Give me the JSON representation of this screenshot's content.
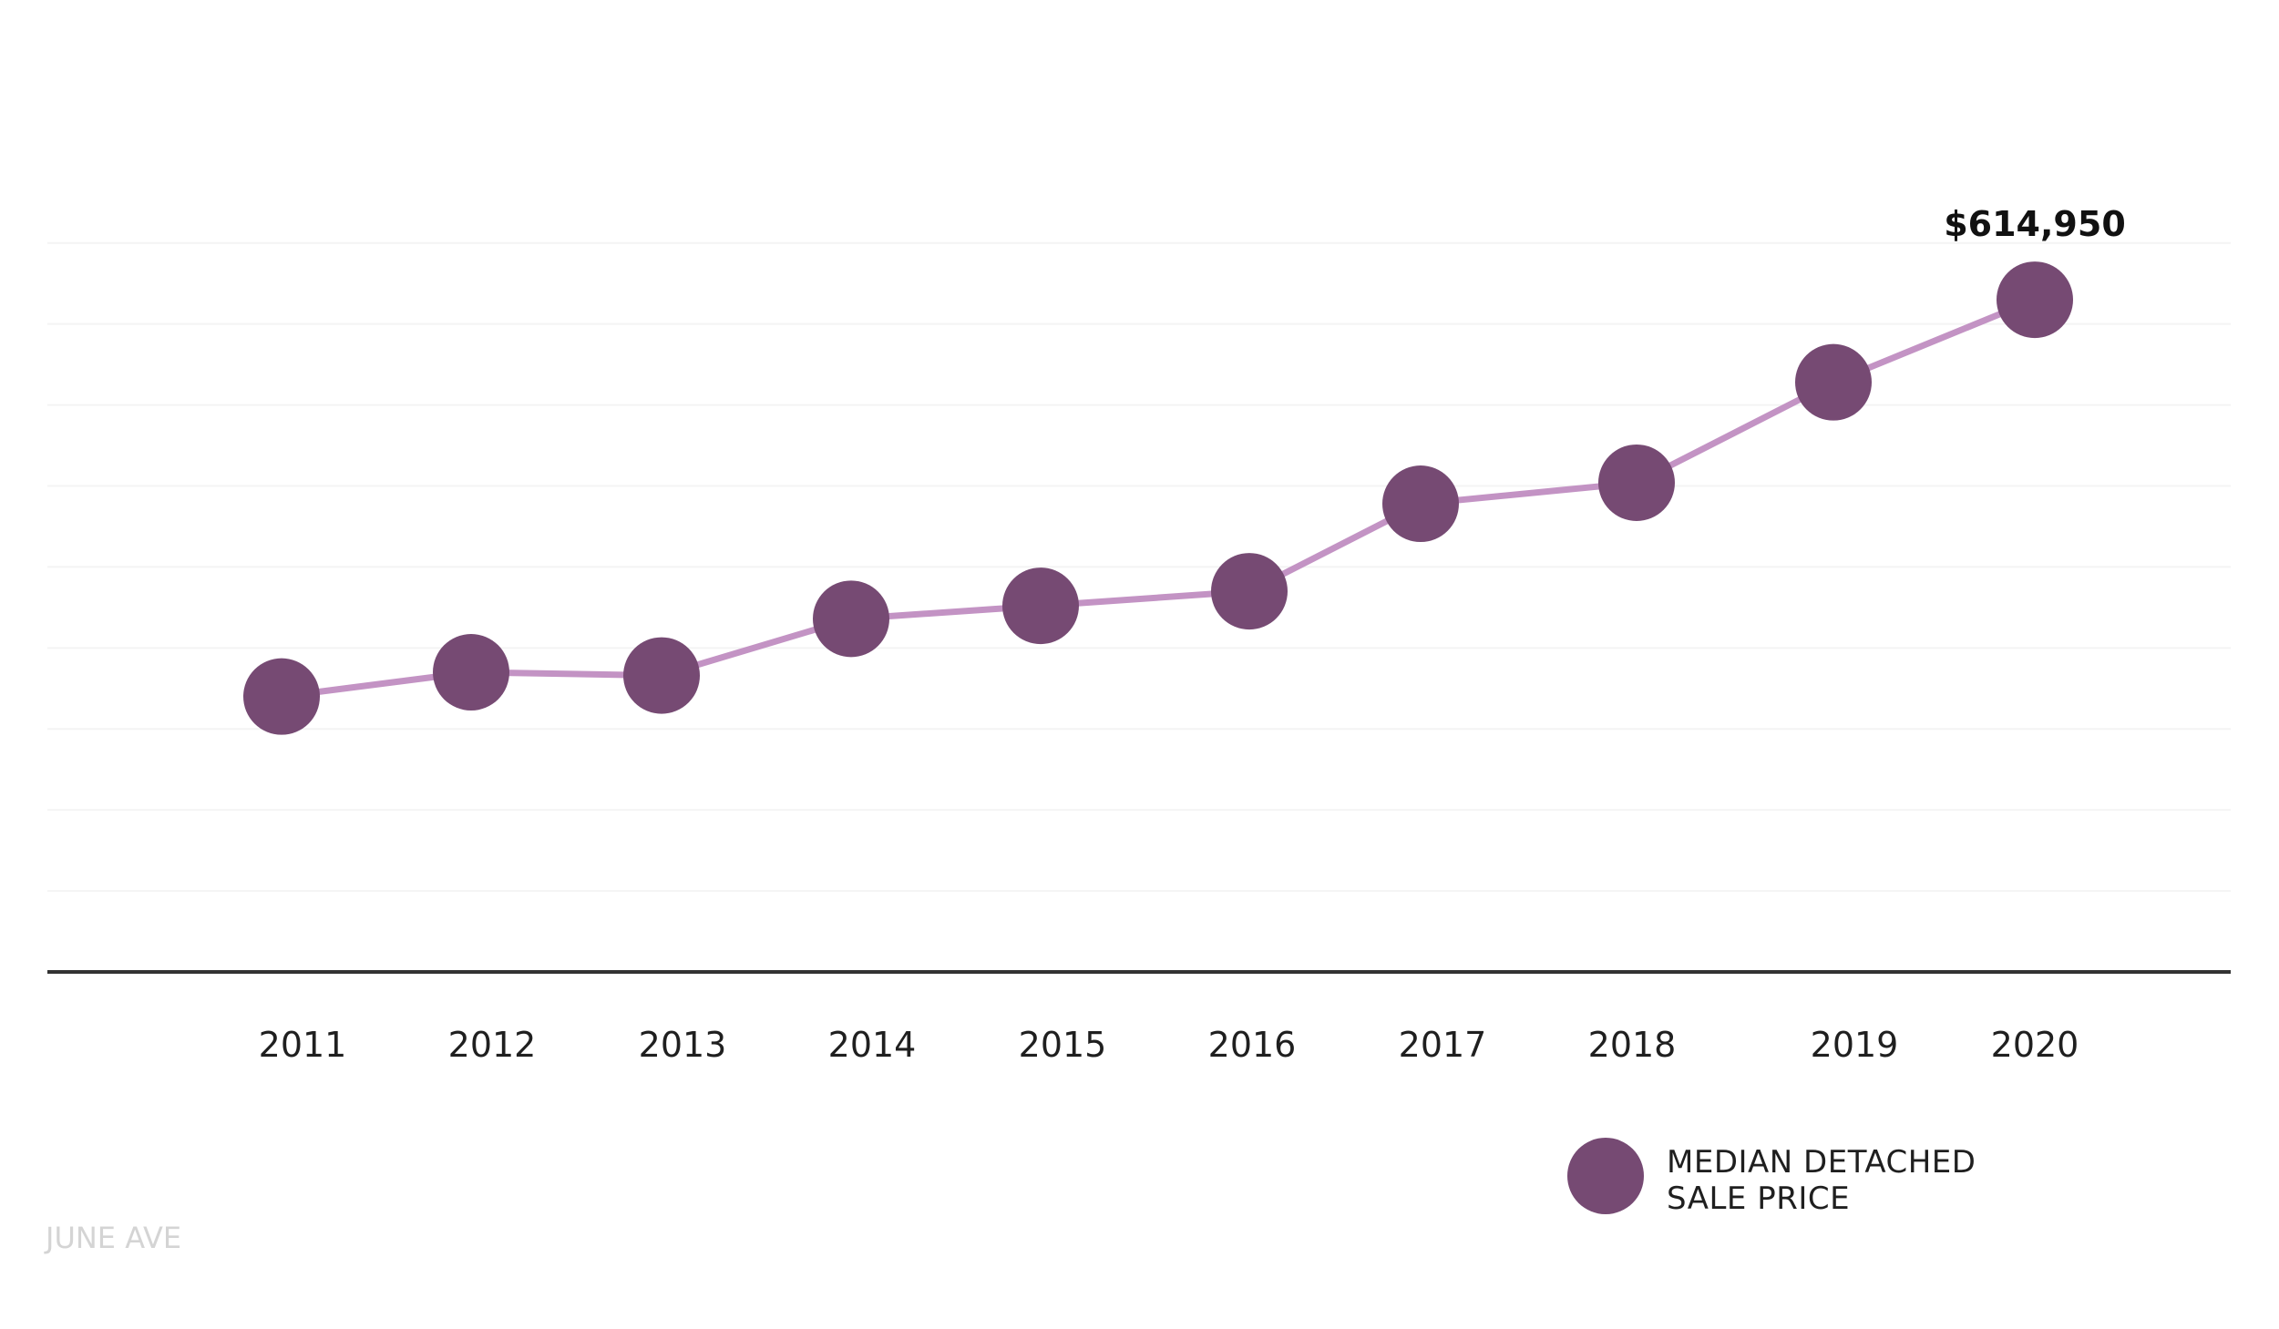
{
  "brand": "JUNE AVE",
  "colors": {
    "marker": "#764a73",
    "line": "#c393c4",
    "axis": "#333333",
    "grid": "#f4f4f4"
  },
  "chart_data": {
    "type": "line",
    "categories": [
      "2011",
      "2012",
      "2013",
      "2014",
      "2015",
      "2016",
      "2017",
      "2018",
      "2019",
      "2020"
    ],
    "series": [
      {
        "name": "MEDIAN DETACHED SALE PRICE",
        "values": [
          370000,
          385000,
          383000,
          418000,
          426000,
          435000,
          489000,
          502000,
          564000,
          614950
        ]
      }
    ],
    "data_labels": [
      {
        "index": 9,
        "text": "$614,950"
      }
    ],
    "legend": {
      "placement": "bottom-right",
      "lines": [
        "MEDIAN DETACHED",
        "SALE PRICE"
      ]
    },
    "ylim": [
      200000,
      800000
    ],
    "grid": true,
    "title": "",
    "xlabel": "",
    "ylabel": ""
  }
}
